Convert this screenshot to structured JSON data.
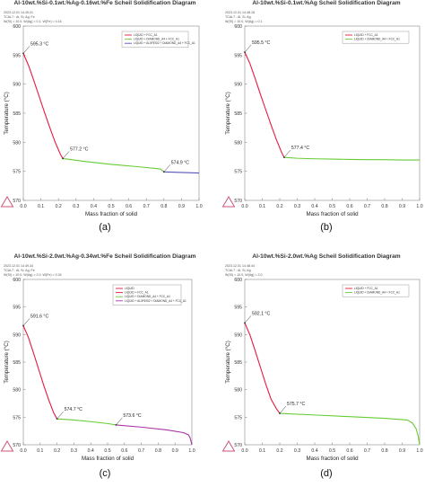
{
  "chart_data": [
    {
      "type": "line",
      "panel_label": "(a)",
      "title": "Al-10wt.%Si-0.1wt.%Ag-0.16wt.%Fe Scheil Solidification Diagram",
      "meta_lines": [
        "2023.12.01 14.49.01",
        "TCAL7 : Al, Si, Ag, Fe",
        "W(SI) = 10.0, W(Ag) = 0.1, W(Fe) = 0.16"
      ],
      "xlabel": "Mass fraction of solid",
      "ylabel": "Temperature (°C)",
      "xlim": [
        0,
        1.0
      ],
      "ylim": [
        570,
        600
      ],
      "xticks": [
        "0.0",
        "0.1",
        "0.2",
        "0.3",
        "0.4",
        "0.5",
        "0.6",
        "0.7",
        "0.8",
        "0.9",
        "1.0"
      ],
      "yticks": [
        "570",
        "575",
        "580",
        "585",
        "590",
        "595",
        "600"
      ],
      "legend_position": "top-right",
      "series": [
        {
          "name": "LIQUID + FCC_A1",
          "color": "#e8193c",
          "x": [
            0,
            0.03,
            0.06,
            0.09,
            0.12,
            0.15,
            0.18,
            0.21,
            0.225
          ],
          "y": [
            595.3,
            593.2,
            590.6,
            587.9,
            585.2,
            582.6,
            580.1,
            578.0,
            577.2
          ]
        },
        {
          "name": "LIQUID + DIAMOND_A4 + FCC_A1",
          "color": "#66cc33",
          "x": [
            0.225,
            0.35,
            0.5,
            0.65,
            0.78,
            0.8
          ],
          "y": [
            577.2,
            576.7,
            576.2,
            575.8,
            575.4,
            574.9
          ]
        },
        {
          "name": "LIQUID + AL5FESI2 + DIAMOND_A4 + FCC_A1",
          "color": "#5555bb",
          "x": [
            0.8,
            0.9,
            1.0
          ],
          "y": [
            574.9,
            574.8,
            574.7
          ]
        }
      ],
      "annotations": [
        {
          "text": "595.3 °C",
          "x": 0,
          "y": 595.3
        },
        {
          "text": "577.2 °C",
          "x": 0.225,
          "y": 577.2
        },
        {
          "text": "574.9 °C",
          "x": 0.8,
          "y": 574.9
        }
      ]
    },
    {
      "type": "line",
      "panel_label": "(b)",
      "title": "Al-10wt.%Si-0.1wt.%Ag Scheil Solidification Diagram",
      "meta_lines": [
        "2023.12.01 14.48.18",
        "TCAL7 : Al, Si, Ag",
        "W(SI) = 10.0, W(Ag) = 0.1"
      ],
      "xlabel": "Mass fraction of solid",
      "ylabel": "Temperature (°C)",
      "xlim": [
        0,
        1.0
      ],
      "ylim": [
        570,
        600
      ],
      "xticks": [
        "0.0",
        "0.1",
        "0.2",
        "0.3",
        "0.4",
        "0.5",
        "0.6",
        "0.7",
        "0.8",
        "0.9",
        "1.0"
      ],
      "yticks": [
        "570",
        "575",
        "580",
        "585",
        "590",
        "595",
        "600"
      ],
      "legend_position": "top-right",
      "series": [
        {
          "name": "LIQUID + FCC_A1",
          "color": "#e8193c",
          "x": [
            0,
            0.03,
            0.06,
            0.09,
            0.12,
            0.15,
            0.18,
            0.21,
            0.225
          ],
          "y": [
            595.5,
            593.5,
            590.9,
            588.2,
            585.6,
            583.0,
            580.5,
            578.3,
            577.4
          ]
        },
        {
          "name": "LIQUID + DIAMOND_A4 + FCC_A1",
          "color": "#66cc33",
          "x": [
            0.225,
            0.3,
            0.4,
            0.5,
            0.6,
            0.7,
            0.8,
            0.9,
            1.0
          ],
          "y": [
            577.4,
            577.25,
            577.15,
            577.1,
            577.05,
            577.0,
            577.0,
            576.95,
            576.95
          ]
        }
      ],
      "annotations": [
        {
          "text": "595.5 °C",
          "x": 0,
          "y": 595.5
        },
        {
          "text": "577.4 °C",
          "x": 0.225,
          "y": 577.4
        }
      ]
    },
    {
      "type": "line",
      "panel_label": "(c)",
      "title": "Al-10wt.%Si-2.0wt.%Ag-0.34wt.%Fe Scheil Solidification Diagram",
      "meta_lines": [
        "2023.12.01 14.49.34",
        "TCAL7 : Al, Si, Ag, Fe",
        "W(SI) = 10.0, W(Ag) = 2.0, W(Fe) = 0.34"
      ],
      "xlabel": "Mass fraction of solid",
      "ylabel": "Temperature (°C)",
      "xlim": [
        0,
        1.0
      ],
      "ylim": [
        570,
        600
      ],
      "xticks": [
        "0.0",
        "0.1",
        "0.2",
        "0.3",
        "0.4",
        "0.5",
        "0.6",
        "0.7",
        "0.8",
        "0.9",
        "1.0"
      ],
      "yticks": [
        "570",
        "575",
        "580",
        "585",
        "590",
        "595",
        "600"
      ],
      "legend_position": "top-right",
      "legend_entries": [
        "LIQUID",
        "LIQUID + FCC_A1",
        "LIQUID + DIAMOND_A4 + FCC_A1",
        "LIQUID + AL5FESI2 + DIAMOND_A4 + FCC_A1"
      ],
      "series": [
        {
          "name": "LIQUID + FCC_A1",
          "color": "#e8193c",
          "x": [
            0,
            0.03,
            0.06,
            0.09,
            0.12,
            0.15,
            0.18,
            0.2
          ],
          "y": [
            591.6,
            589.5,
            586.7,
            583.8,
            580.9,
            578.2,
            575.8,
            574.7
          ]
        },
        {
          "name": "LIQUID + DIAMOND_A4 + FCC_A1",
          "color": "#66cc33",
          "x": [
            0.2,
            0.3,
            0.4,
            0.5,
            0.55
          ],
          "y": [
            574.7,
            574.5,
            574.2,
            573.85,
            573.6
          ]
        },
        {
          "name": "LIQUID + AL5FESI2 + DIAMOND_A4 + FCC_A1",
          "color": "#aa33aa",
          "x": [
            0.55,
            0.7,
            0.85,
            0.95,
            0.98,
            0.99,
            1.0
          ],
          "y": [
            573.6,
            573.2,
            572.7,
            572.2,
            571.8,
            571.2,
            570.0
          ]
        }
      ],
      "annotations": [
        {
          "text": "591.6 °C",
          "x": 0,
          "y": 591.6
        },
        {
          "text": "574.7 °C",
          "x": 0.2,
          "y": 574.7
        },
        {
          "text": "573.6 °C",
          "x": 0.55,
          "y": 573.6
        }
      ]
    },
    {
      "type": "line",
      "panel_label": "(d)",
      "title": "Al-10wt.%Si-2.0wt.%Ag Scheil Solidification Diagram",
      "meta_lines": [
        "2023.12.01 14.48.44",
        "TCAL7 : Al, Si, Ag",
        "W(SI) = 10.0, W(Ag) = 2.0"
      ],
      "xlabel": "Mass fraction of solid",
      "ylabel": "Temperature (°C)",
      "xlim": [
        0,
        1.0
      ],
      "ylim": [
        570,
        600
      ],
      "xticks": [
        "0.0",
        "0.1",
        "0.2",
        "0.3",
        "0.4",
        "0.5",
        "0.6",
        "0.7",
        "0.8",
        "0.9",
        "1.0"
      ],
      "yticks": [
        "570",
        "575",
        "580",
        "585",
        "590",
        "595",
        "600"
      ],
      "legend_position": "top-right",
      "series": [
        {
          "name": "LIQUID + FCC_A1",
          "color": "#e8193c",
          "x": [
            0,
            0.03,
            0.06,
            0.09,
            0.12,
            0.15,
            0.18,
            0.2
          ],
          "y": [
            592.1,
            589.9,
            587.0,
            584.0,
            581.0,
            578.3,
            576.6,
            575.7
          ]
        },
        {
          "name": "LIQUID + DIAMOND_A4 + FCC_A1",
          "color": "#66cc33",
          "x": [
            0.2,
            0.4,
            0.6,
            0.8,
            0.93,
            0.96,
            0.98,
            0.99,
            1.0
          ],
          "y": [
            575.7,
            575.4,
            575.1,
            574.8,
            574.5,
            573.9,
            572.9,
            571.8,
            570.0
          ]
        }
      ],
      "annotations": [
        {
          "text": "592.1 °C",
          "x": 0,
          "y": 592.1
        },
        {
          "text": "575.7 °C",
          "x": 0.2,
          "y": 575.7
        }
      ]
    }
  ]
}
